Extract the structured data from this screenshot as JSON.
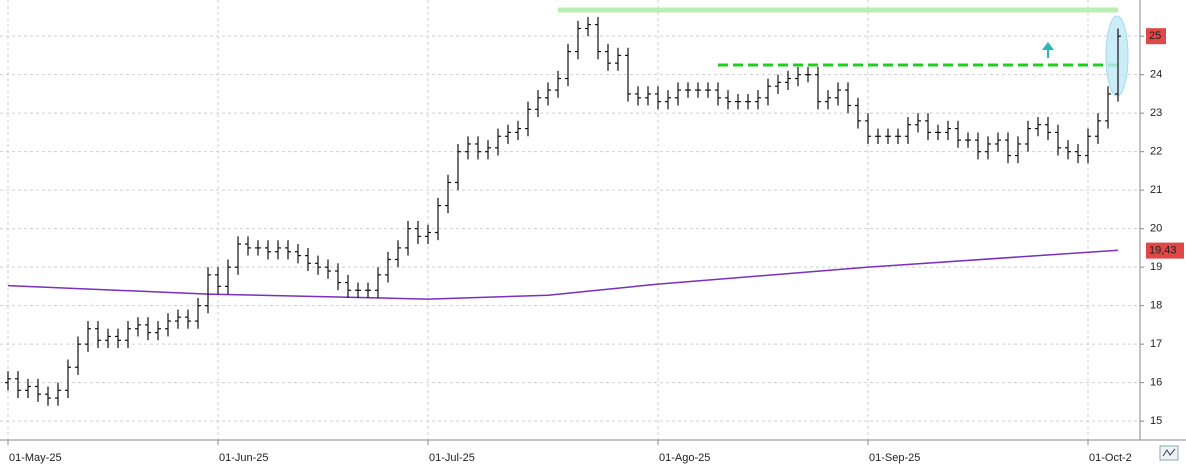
{
  "chart_data": {
    "type": "ohlc",
    "categories": [
      "01-May-25",
      null,
      null,
      null,
      null,
      null,
      null,
      null,
      null,
      null,
      null,
      null,
      null,
      null,
      null,
      null,
      null,
      null,
      null,
      null,
      null,
      "01-Jun-25",
      null,
      null,
      null,
      null,
      null,
      null,
      null,
      null,
      null,
      null,
      null,
      null,
      null,
      null,
      null,
      null,
      null,
      null,
      null,
      null,
      "01-Jul-25",
      null,
      null,
      null,
      null,
      null,
      null,
      null,
      null,
      null,
      null,
      null,
      null,
      null,
      null,
      null,
      null,
      null,
      null,
      null,
      null,
      null,
      null,
      "01-Ago-25",
      null,
      null,
      null,
      null,
      null,
      null,
      null,
      null,
      null,
      null,
      null,
      null,
      null,
      null,
      null,
      null,
      null,
      null,
      null,
      null,
      "01-Sep-25",
      null,
      null,
      null,
      null,
      null,
      null,
      null,
      null,
      null,
      null,
      null,
      null,
      null,
      null,
      null,
      null,
      null,
      null,
      null,
      null,
      null,
      "01-Oct-2",
      null,
      null,
      null
    ],
    "series": [
      {
        "color": "#111111",
        "open": [
          16.0,
          16.1,
          15.8,
          15.9,
          15.7,
          15.6,
          15.8,
          16.4,
          17.0,
          17.4,
          17.1,
          17.2,
          17.1,
          17.4,
          17.5,
          17.3,
          17.4,
          17.6,
          17.7,
          17.6,
          18.0,
          18.8,
          18.5,
          19.0,
          19.6,
          19.5,
          19.5,
          19.4,
          19.5,
          19.4,
          19.3,
          19.1,
          19.0,
          18.9,
          18.6,
          18.4,
          18.4,
          18.4,
          18.8,
          19.2,
          19.5,
          20.0,
          19.8,
          19.9,
          20.6,
          21.2,
          22.0,
          22.2,
          22.0,
          22.1,
          22.4,
          22.5,
          22.6,
          23.1,
          23.4,
          23.6,
          23.9,
          24.6,
          25.2,
          25.3,
          24.6,
          24.3,
          24.5,
          23.5,
          23.4,
          23.5,
          23.3,
          23.4,
          23.6,
          23.6,
          23.6,
          23.6,
          23.4,
          23.3,
          23.3,
          23.3,
          23.4,
          23.7,
          23.8,
          23.9,
          24.0,
          24.0,
          23.3,
          23.4,
          23.6,
          23.2,
          22.8,
          22.4,
          22.4,
          22.4,
          22.4,
          22.7,
          22.8,
          22.5,
          22.5,
          22.6,
          22.3,
          22.3,
          22.0,
          22.2,
          22.3,
          21.9,
          22.2,
          22.6,
          22.7,
          22.5,
          22.1,
          22.0,
          21.9,
          22.4,
          22.8,
          23.5
        ],
        "high": [
          16.3,
          16.3,
          16.1,
          16.1,
          15.9,
          16.0,
          16.6,
          17.2,
          17.6,
          17.6,
          17.4,
          17.4,
          17.6,
          17.7,
          17.7,
          17.6,
          17.8,
          17.9,
          17.9,
          18.2,
          19.0,
          19.0,
          19.2,
          19.8,
          19.8,
          19.7,
          19.7,
          19.7,
          19.7,
          19.6,
          19.5,
          19.3,
          19.2,
          19.1,
          18.8,
          18.6,
          18.6,
          19.0,
          19.4,
          19.7,
          20.2,
          20.2,
          20.1,
          20.8,
          21.4,
          22.2,
          22.4,
          22.4,
          22.3,
          22.6,
          22.7,
          22.8,
          23.3,
          23.6,
          23.8,
          24.1,
          24.8,
          25.4,
          25.5,
          25.5,
          24.8,
          24.7,
          24.7,
          23.7,
          23.7,
          23.7,
          23.6,
          23.8,
          23.8,
          23.8,
          23.8,
          23.8,
          23.6,
          23.5,
          23.5,
          23.6,
          23.9,
          24.0,
          24.1,
          24.2,
          24.2,
          24.2,
          23.6,
          23.8,
          23.8,
          23.4,
          23.0,
          22.6,
          22.6,
          22.6,
          22.9,
          23.0,
          23.0,
          22.7,
          22.8,
          22.8,
          22.5,
          22.5,
          22.4,
          22.5,
          22.5,
          22.4,
          22.8,
          22.9,
          22.9,
          22.7,
          22.3,
          22.2,
          22.6,
          23.0,
          23.7,
          25.2
        ],
        "low": [
          15.8,
          15.6,
          15.6,
          15.5,
          15.4,
          15.4,
          15.6,
          16.2,
          16.8,
          16.9,
          16.9,
          16.9,
          16.9,
          17.2,
          17.1,
          17.1,
          17.2,
          17.4,
          17.4,
          17.4,
          17.8,
          18.3,
          18.3,
          18.8,
          19.3,
          19.3,
          19.2,
          19.2,
          19.2,
          19.1,
          18.9,
          18.8,
          18.7,
          18.4,
          18.2,
          18.2,
          18.2,
          18.2,
          18.6,
          19.0,
          19.3,
          19.6,
          19.6,
          19.7,
          20.4,
          21.0,
          21.8,
          21.8,
          21.8,
          21.9,
          22.2,
          22.3,
          22.4,
          22.9,
          23.2,
          23.4,
          23.7,
          24.4,
          25.0,
          24.4,
          24.1,
          24.1,
          23.3,
          23.2,
          23.2,
          23.1,
          23.1,
          23.2,
          23.4,
          23.4,
          23.4,
          23.2,
          23.1,
          23.1,
          23.1,
          23.1,
          23.2,
          23.5,
          23.6,
          23.7,
          23.8,
          23.1,
          23.1,
          23.2,
          23.0,
          22.6,
          22.2,
          22.2,
          22.2,
          22.2,
          22.2,
          22.5,
          22.3,
          22.3,
          22.3,
          22.1,
          22.1,
          21.8,
          21.8,
          22.0,
          21.7,
          21.7,
          22.0,
          22.4,
          22.3,
          21.9,
          21.8,
          21.7,
          21.7,
          22.2,
          22.6,
          23.3
        ],
        "close": [
          16.1,
          15.8,
          15.9,
          15.7,
          15.6,
          15.8,
          16.4,
          17.0,
          17.4,
          17.1,
          17.2,
          17.1,
          17.4,
          17.5,
          17.3,
          17.4,
          17.6,
          17.7,
          17.6,
          18.0,
          18.8,
          18.5,
          19.0,
          19.6,
          19.5,
          19.5,
          19.4,
          19.5,
          19.4,
          19.3,
          19.1,
          19.0,
          18.9,
          18.6,
          18.4,
          18.4,
          18.4,
          18.8,
          19.2,
          19.5,
          20.0,
          19.8,
          19.9,
          20.6,
          21.2,
          22.0,
          22.2,
          22.0,
          22.1,
          22.4,
          22.5,
          22.6,
          23.1,
          23.4,
          23.6,
          23.9,
          24.6,
          25.2,
          25.3,
          24.6,
          24.3,
          24.5,
          23.5,
          23.4,
          23.5,
          23.3,
          23.4,
          23.6,
          23.6,
          23.6,
          23.6,
          23.4,
          23.3,
          23.3,
          23.3,
          23.4,
          23.7,
          23.8,
          23.9,
          24.0,
          24.0,
          23.3,
          23.4,
          23.6,
          23.2,
          22.8,
          22.4,
          22.4,
          22.4,
          22.4,
          22.7,
          22.8,
          22.5,
          22.5,
          22.6,
          22.3,
          22.3,
          22.0,
          22.2,
          22.3,
          21.9,
          22.2,
          22.6,
          22.7,
          22.5,
          22.1,
          22.0,
          21.9,
          22.4,
          22.8,
          23.5,
          25.0
        ]
      }
    ],
    "moving_average": {
      "color": "#7a2fbf",
      "x": [
        0,
        20,
        42,
        54,
        65,
        86,
        111
      ],
      "values": [
        18.52,
        18.3,
        18.17,
        18.27,
        18.56,
        19.0,
        19.44
      ]
    },
    "levels": [
      {
        "value": 25.68,
        "from": 55,
        "to": 111,
        "color": "#b8f0b2",
        "style": "solid"
      },
      {
        "value": 24.25,
        "from": 71,
        "to": 111,
        "color": "#1fcf1f",
        "style": "dashed"
      }
    ],
    "price_tags": [
      {
        "value": 25,
        "label": "25",
        "color": "#e04848"
      },
      {
        "value": 19.43,
        "label": "19,43",
        "color": "#e04848"
      }
    ],
    "ylim": [
      14.51,
      25.94
    ],
    "yticks": [
      15,
      16,
      17,
      18,
      19,
      20,
      21,
      22,
      23,
      24,
      25
    ],
    "grid": true
  }
}
